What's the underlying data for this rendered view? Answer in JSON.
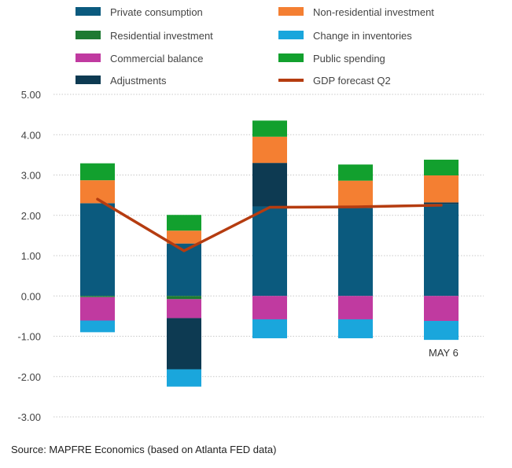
{
  "chart_data": {
    "type": "bar",
    "stacked": true,
    "categories": [
      "",
      "",
      "",
      "",
      ""
    ],
    "ylim": [
      -3,
      5
    ],
    "yticks": [
      5,
      4,
      3,
      2,
      1,
      0,
      -1,
      -2,
      -3
    ],
    "ytick_labels": [
      "5.00",
      "4.00",
      "3.00",
      "2.00",
      "1.00",
      "0.00",
      "-1.00",
      "-2.00",
      "-3.00"
    ],
    "grid": true,
    "legend_position": "top",
    "series": [
      {
        "name": "Private consumption",
        "color": "#0b5a7e",
        "values": [
          2.3,
          1.3,
          2.22,
          2.18,
          2.28
        ]
      },
      {
        "name": "Residential investment",
        "color": "#1e7a32",
        "values": [
          -0.03,
          -0.08,
          0.0,
          0.0,
          0.0
        ]
      },
      {
        "name": "Commercial balance",
        "color": "#c03aa0",
        "values": [
          -0.58,
          -0.47,
          -0.58,
          -0.58,
          -0.62
        ]
      },
      {
        "name": "Adjustments",
        "color": "#0d3a52",
        "values": [
          0.0,
          -1.27,
          1.08,
          0.0,
          0.04
        ]
      },
      {
        "name": "Non-residential investment",
        "color": "#f47f32",
        "values": [
          0.57,
          0.32,
          0.65,
          0.68,
          0.67
        ]
      },
      {
        "name": "Change in inventories",
        "color": "#1aa6dc",
        "values": [
          -0.29,
          -0.43,
          -0.47,
          -0.47,
          -0.47
        ]
      },
      {
        "name": "Public spending",
        "color": "#12a02e",
        "values": [
          0.42,
          0.39,
          0.4,
          0.4,
          0.39
        ]
      }
    ],
    "line_series": {
      "name": "GDP forecast Q2",
      "color": "#b53c10",
      "values": [
        2.4,
        1.12,
        2.2,
        2.21,
        2.25
      ]
    },
    "annotation": "MAY 6"
  },
  "legend": {
    "left": [
      "Private consumption",
      "Residential investment",
      "Commercial balance",
      "Adjustments"
    ],
    "right": [
      "Non-residential investment",
      "Change in inventories",
      "Public spending",
      "GDP forecast Q2"
    ]
  },
  "source": "Source: MAPFRE Economics (based on Atlanta FED data)"
}
